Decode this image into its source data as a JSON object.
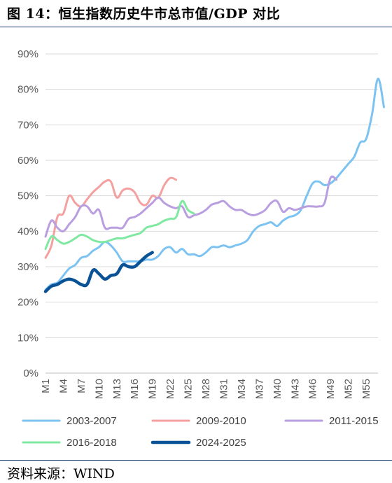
{
  "title": "图 14：恒生指数历史牛市总市值/GDP 对比",
  "source": "资料来源：WIND",
  "chart_data": {
    "type": "line",
    "x_ticks": [
      "M1",
      "M4",
      "M7",
      "M10",
      "M13",
      "M16",
      "M19",
      "M22",
      "M25",
      "M28",
      "M31",
      "M34",
      "M37",
      "M40",
      "M43",
      "M46",
      "M49",
      "M52",
      "M55"
    ],
    "y_ticks": [
      "0%",
      "10%",
      "20%",
      "30%",
      "40%",
      "50%",
      "60%",
      "70%",
      "80%",
      "90%"
    ],
    "ylim": [
      0,
      90
    ],
    "xlim": [
      1,
      57
    ],
    "legend_position": "bottom",
    "series": [
      {
        "name": "2003-2007",
        "color": "#7cc3f2",
        "width": 3,
        "values": [
          23.5,
          25,
          25.5,
          27.5,
          29.5,
          30.5,
          32.5,
          33,
          34.5,
          35.5,
          37,
          36,
          34,
          31.5,
          31.5,
          31.5,
          31.5,
          32,
          32,
          33,
          35,
          35.5,
          34,
          35,
          33.5,
          33.5,
          33,
          34,
          35.5,
          35.5,
          36,
          35.5,
          36,
          36.5,
          37.5,
          40,
          41.5,
          42,
          42.5,
          41.5,
          43,
          44,
          44.5,
          46,
          50,
          53.5,
          54,
          53,
          53.5,
          55,
          57,
          59,
          61,
          65,
          66,
          73,
          83,
          75
        ]
      },
      {
        "name": "2009-2010",
        "color": "#f4a0a0",
        "width": 3,
        "values": [
          32.5,
          36,
          44,
          45,
          50,
          48,
          47,
          49,
          51,
          52.5,
          54,
          54,
          49.5,
          51.5,
          52,
          51,
          48,
          47.5,
          50,
          49.5,
          53,
          55,
          54.5
        ]
      },
      {
        "name": "2011-2015",
        "color": "#b99ee0",
        "width": 3,
        "values": [
          38.5,
          43,
          41,
          40,
          42,
          44,
          47,
          47,
          45,
          46,
          41,
          41,
          41,
          41,
          43.5,
          44,
          45,
          46.5,
          48,
          49.5,
          48,
          47,
          46.5,
          47,
          44,
          44.5,
          45,
          46,
          47.5,
          48,
          48.5,
          47,
          46,
          46,
          45,
          44.5,
          45,
          46,
          48,
          48.5,
          45.5,
          46.5,
          46,
          46.5,
          47,
          47,
          47,
          48,
          55,
          54.5
        ]
      },
      {
        "name": "2016-2018",
        "color": "#7fe9a2",
        "width": 3,
        "values": [
          35,
          38.5,
          37.5,
          36.5,
          37,
          38,
          39,
          38.5,
          37.5,
          37,
          37,
          37.5,
          38,
          38,
          38.5,
          39,
          39.5,
          41,
          41.5,
          42,
          43,
          43.5,
          44,
          48.5,
          46,
          45
        ]
      },
      {
        "name": "2024-2025",
        "color": "#0a5296",
        "width": 4.5,
        "values": [
          23,
          24.5,
          25,
          26,
          26.5,
          26,
          25,
          25,
          29,
          28,
          26.5,
          27.5,
          28,
          30.5,
          30,
          30,
          31.5,
          33,
          34
        ]
      }
    ]
  }
}
